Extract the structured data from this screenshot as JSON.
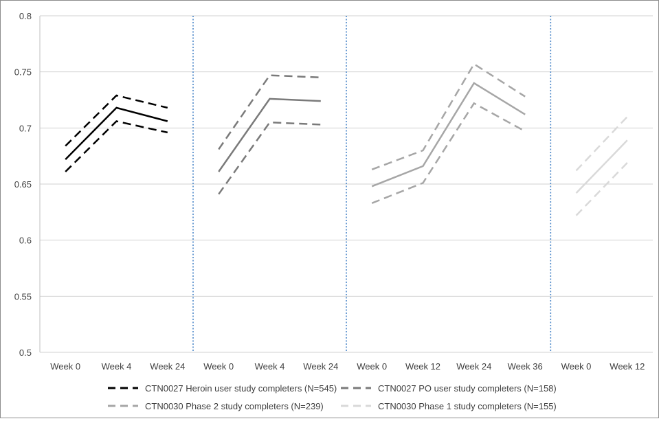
{
  "chart_data": {
    "type": "line",
    "ylim": [
      0.5,
      0.8
    ],
    "y_ticks": [
      "0.5",
      "0.55",
      "0.6",
      "0.65",
      "0.7",
      "0.75",
      "0.8"
    ],
    "grid": true,
    "legend_placement": "bottom",
    "categories": [
      "Week 0",
      "Week 4",
      "Week 24",
      "Week 0",
      "Week 4",
      "Week 24",
      "Week 0",
      "Week 12",
      "Week 24",
      "Week 36",
      "Week 0",
      "Week 12"
    ],
    "groups": [
      {
        "legend": "CTN0027 Heroin user study completers (N=545)",
        "color": "#000000",
        "categories": [
          "Week 0",
          "Week 4",
          "Week 24"
        ],
        "mean": [
          0.672,
          0.718,
          0.706
        ],
        "upper": [
          0.684,
          0.729,
          0.718
        ],
        "lower": [
          0.661,
          0.706,
          0.696
        ]
      },
      {
        "legend": "CTN0027 PO user study completers (N=158)",
        "color": "#7a7a7a",
        "categories": [
          "Week 0",
          "Week 4",
          "Week 24"
        ],
        "mean": [
          0.661,
          0.726,
          0.724
        ],
        "upper": [
          0.681,
          0.747,
          0.745
        ],
        "lower": [
          0.641,
          0.705,
          0.703
        ]
      },
      {
        "legend": "CTN0030 Phase 2 study completers (N=239)",
        "color": "#a6a6a6",
        "categories": [
          "Week 0",
          "Week 12",
          "Week 24",
          "Week 36"
        ],
        "mean": [
          0.648,
          0.666,
          0.74,
          0.712
        ],
        "upper": [
          0.663,
          0.68,
          0.757,
          0.728
        ],
        "lower": [
          0.633,
          0.651,
          0.722,
          0.697
        ]
      },
      {
        "legend": "CTN0030 Phase 1 study completers (N=155)",
        "color": "#d9d9d9",
        "categories": [
          "Week 0",
          "Week 12"
        ],
        "mean": [
          0.642,
          0.689
        ],
        "upper": [
          0.662,
          0.71
        ],
        "lower": [
          0.622,
          0.669
        ]
      }
    ]
  }
}
